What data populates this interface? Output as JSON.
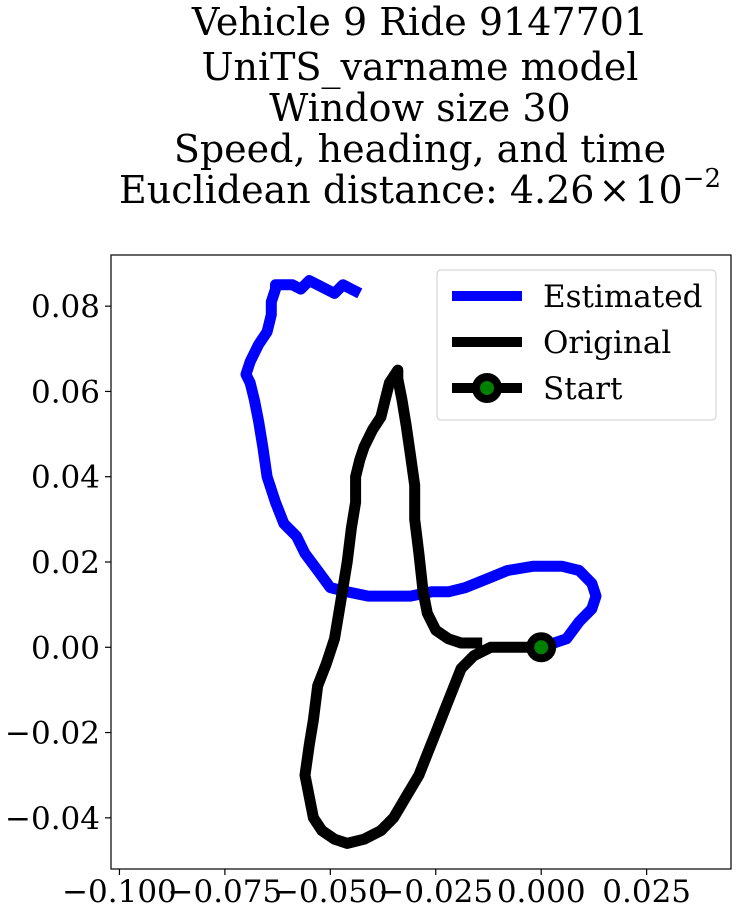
{
  "chart_data": {
    "type": "line",
    "title_lines": [
      "Vehicle 9 Ride 9147701",
      "UniTS_varname model",
      "Window size 30",
      "Speed, heading, and time"
    ],
    "title_metric": {
      "prefix": "Euclidean distance: ",
      "mantissa": "4.26",
      "times": "×",
      "base": "10",
      "exponent": "−2"
    },
    "xlabel": "",
    "ylabel": "",
    "xlim": [
      -0.102,
      0.045
    ],
    "ylim": [
      -0.052,
      0.092
    ],
    "xticks": [
      -0.1,
      -0.075,
      -0.05,
      -0.025,
      0.0,
      0.025
    ],
    "xtick_labels": [
      "−0.100",
      "−0.075",
      "−0.050",
      "−0.025",
      "0.000",
      "0.025"
    ],
    "yticks": [
      -0.04,
      -0.02,
      0.0,
      0.02,
      0.04,
      0.06,
      0.08
    ],
    "ytick_labels": [
      "−0.04",
      "−0.02",
      "0.00",
      "0.02",
      "0.04",
      "0.06",
      "0.08"
    ],
    "grid": false,
    "legend_position": "top-right",
    "series": [
      {
        "name": "Estimated",
        "color": "#0000ff",
        "x": [
          0.0,
          0.006,
          0.009,
          0.012,
          0.013,
          0.012,
          0.009,
          0.005,
          -0.002,
          -0.008,
          -0.013,
          -0.018,
          -0.022,
          -0.026,
          -0.031,
          -0.036,
          -0.041,
          -0.046,
          -0.05,
          -0.053,
          -0.056,
          -0.058,
          -0.061,
          -0.063,
          -0.065,
          -0.066,
          -0.067,
          -0.068,
          -0.069,
          -0.07,
          -0.069,
          -0.067,
          -0.065,
          -0.064,
          -0.064,
          -0.063,
          -0.063,
          -0.061,
          -0.059,
          -0.057,
          -0.055,
          -0.053,
          -0.051,
          -0.049,
          -0.047,
          -0.045,
          -0.043
        ],
        "y": [
          0.0,
          0.002,
          0.006,
          0.009,
          0.012,
          0.015,
          0.018,
          0.019,
          0.019,
          0.018,
          0.016,
          0.014,
          0.013,
          0.013,
          0.012,
          0.012,
          0.012,
          0.013,
          0.014,
          0.018,
          0.022,
          0.026,
          0.029,
          0.034,
          0.04,
          0.047,
          0.053,
          0.058,
          0.062,
          0.064,
          0.067,
          0.071,
          0.074,
          0.078,
          0.081,
          0.084,
          0.085,
          0.085,
          0.085,
          0.084,
          0.086,
          0.085,
          0.084,
          0.083,
          0.085,
          0.084,
          0.083
        ]
      },
      {
        "name": "Original",
        "color": "#000000",
        "x": [
          0.0,
          -0.006,
          -0.012,
          -0.016,
          -0.019,
          -0.021,
          -0.023,
          -0.025,
          -0.027,
          -0.029,
          -0.032,
          -0.035,
          -0.038,
          -0.042,
          -0.046,
          -0.049,
          -0.052,
          -0.054,
          -0.055,
          -0.056,
          -0.055,
          -0.054,
          -0.053,
          -0.051,
          -0.049,
          -0.048,
          -0.047,
          -0.046,
          -0.045,
          -0.044,
          -0.044,
          -0.043,
          -0.042,
          -0.04,
          -0.038,
          -0.037,
          -0.036,
          -0.034,
          -0.034,
          -0.033,
          -0.032,
          -0.031,
          -0.03,
          -0.03,
          -0.029,
          -0.028,
          -0.027,
          -0.025,
          -0.022,
          -0.019,
          -0.014
        ],
        "y": [
          0.0,
          0.0,
          0.0,
          -0.002,
          -0.005,
          -0.01,
          -0.015,
          -0.02,
          -0.025,
          -0.03,
          -0.035,
          -0.04,
          -0.043,
          -0.045,
          -0.046,
          -0.045,
          -0.043,
          -0.04,
          -0.035,
          -0.03,
          -0.023,
          -0.017,
          -0.009,
          -0.004,
          0.002,
          0.008,
          0.014,
          0.02,
          0.028,
          0.034,
          0.04,
          0.044,
          0.047,
          0.051,
          0.054,
          0.058,
          0.062,
          0.065,
          0.063,
          0.058,
          0.052,
          0.045,
          0.038,
          0.03,
          0.022,
          0.013,
          0.008,
          0.004,
          0.002,
          0.001,
          0.001
        ]
      }
    ],
    "start": {
      "label": "Start",
      "x": 0.0,
      "y": 0.0,
      "face_color": "#008000",
      "edge_color": "#000000"
    },
    "legend": [
      "Estimated",
      "Original",
      "Start"
    ]
  }
}
